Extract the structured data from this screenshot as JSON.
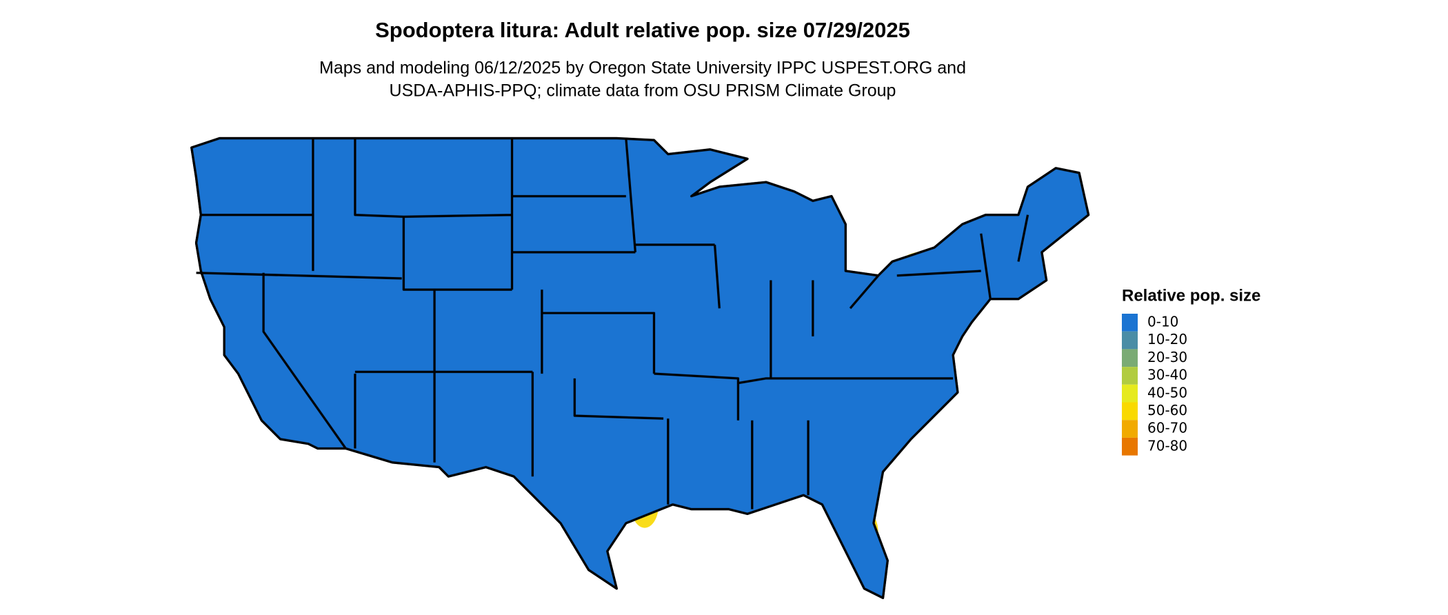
{
  "title": "Spodoptera litura: Adult relative pop. size 07/29/2025",
  "subtitle": [
    "Maps and modeling 06/12/2025 by Oregon State University IPPC USPEST.ORG and",
    "USDA-APHIS-PPQ; climate data from OSU PRISM Climate Group"
  ],
  "legend": {
    "title": "Relative pop. size",
    "items": [
      {
        "label": "0-10",
        "color": "#1b74d2"
      },
      {
        "label": "10-20",
        "color": "#4a8da6"
      },
      {
        "label": "20-30",
        "color": "#7aab74"
      },
      {
        "label": "30-40",
        "color": "#b1cc40"
      },
      {
        "label": "40-50",
        "color": "#e6ea1e"
      },
      {
        "label": "50-60",
        "color": "#f9d900"
      },
      {
        "label": "60-70",
        "color": "#f1aa00"
      },
      {
        "label": "70-80",
        "color": "#e87700"
      }
    ]
  }
}
